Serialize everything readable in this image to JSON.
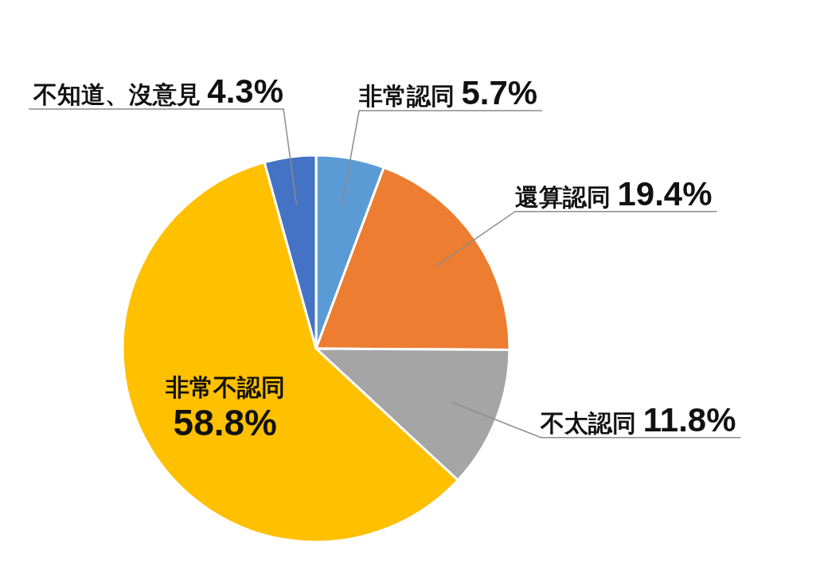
{
  "chart_data": {
    "type": "pie",
    "categories": [
      "非常認同",
      "還算認同",
      "不太認同",
      "非常不認同",
      "不知道、沒意見"
    ],
    "values": [
      5.7,
      19.4,
      11.8,
      58.8,
      4.3
    ],
    "value_labels": [
      "5.7%",
      "19.4%",
      "11.8%",
      "58.8%",
      "4.3%"
    ],
    "colors": [
      "#5b9bd5",
      "#ed7d31",
      "#a5a5a5",
      "#ffc000",
      "#4472c4"
    ],
    "legend": false
  }
}
